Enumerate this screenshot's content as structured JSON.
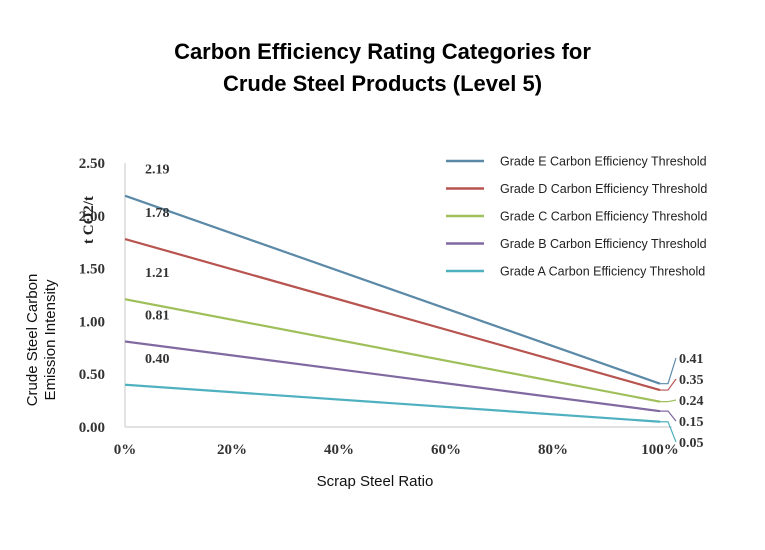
{
  "chart_data": {
    "type": "line",
    "title_line1": "Carbon Efficiency Rating Categories for",
    "title_line2": "Crude Steel Products (Level 5)",
    "xlabel": "Scrap Steel Ratio",
    "ylabel_line1": "Crude Steel Carbon",
    "ylabel_line2": "Emission Intensity",
    "y_unit": "t CO2/t",
    "x": [
      0,
      100
    ],
    "xlim": [
      0,
      100
    ],
    "ylim": [
      0,
      2.5
    ],
    "x_ticks": [
      "0%",
      "20%",
      "40%",
      "60%",
      "80%",
      "100%"
    ],
    "y_ticks": [
      "0.00",
      "0.50",
      "1.00",
      "1.50",
      "2.00",
      "2.50"
    ],
    "grid": false,
    "legend_position": "top-right",
    "series": [
      {
        "name": "Grade E Carbon Efficiency Threshold",
        "color": "#5b89a8",
        "values": [
          2.19,
          0.41
        ],
        "start_label": "2.19",
        "end_label": "0.41"
      },
      {
        "name": "Grade D Carbon Efficiency Threshold",
        "color": "#b85450",
        "values": [
          1.78,
          0.35
        ],
        "start_label": "1.78",
        "end_label": "0.35"
      },
      {
        "name": "Grade C Carbon Efficiency Threshold",
        "color": "#9fbf5a",
        "values": [
          1.21,
          0.24
        ],
        "start_label": "1.21",
        "end_label": "0.24"
      },
      {
        "name": "Grade B Carbon Efficiency Threshold",
        "color": "#8068a0",
        "values": [
          0.81,
          0.15
        ],
        "start_label": "0.81",
        "end_label": "0.15"
      },
      {
        "name": "Grade A Carbon Efficiency Threshold",
        "color": "#4fb0c0",
        "values": [
          0.4,
          0.05
        ],
        "start_label": "0.40",
        "end_label": "0.05"
      }
    ]
  }
}
